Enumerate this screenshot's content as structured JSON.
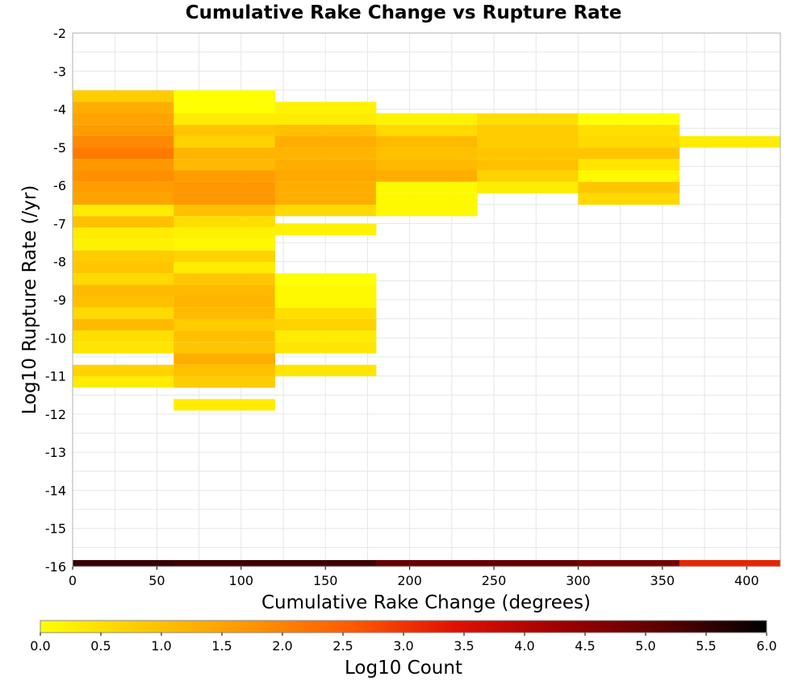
{
  "chart_data": {
    "type": "heatmap",
    "title": "Cumulative Rake Change vs Rupture Rate",
    "xlabel": "Cumulative Rake Change (degrees)",
    "ylabel": "Log10 Rupture Rate (/yr)",
    "xlim": [
      0,
      420
    ],
    "ylim": [
      -16,
      -2
    ],
    "x_ticks": [
      0,
      50,
      100,
      150,
      200,
      250,
      300,
      350,
      400
    ],
    "y_ticks": [
      -2,
      -3,
      -4,
      -5,
      -6,
      -7,
      -8,
      -9,
      -10,
      -11,
      -12,
      -13,
      -14,
      -15,
      -16
    ],
    "x_bin_width": 60,
    "y_bin_height": 0.29,
    "grid": true,
    "colorbar": {
      "label": "Log10 Count",
      "min": 0.0,
      "max": 6.0,
      "ticks": [
        "0.0",
        "0.5",
        "1.0",
        "1.5",
        "2.0",
        "2.5",
        "3.0",
        "3.5",
        "4.0",
        "4.5",
        "5.0",
        "5.5",
        "6.0"
      ],
      "stops": [
        "#ffff00",
        "#ffc800",
        "#ff9600",
        "#ff5a00",
        "#e01000",
        "#a00000",
        "#5a0000",
        "#000000"
      ]
    },
    "bins": [
      {
        "x": 30,
        "rows": [
          [
            -3.65,
            0.8
          ],
          [
            -3.95,
            1.3
          ],
          [
            -4.25,
            1.5
          ],
          [
            -4.55,
            1.6
          ],
          [
            -4.85,
            1.9
          ],
          [
            -5.15,
            2.1
          ],
          [
            -5.45,
            1.7
          ],
          [
            -5.75,
            1.8
          ],
          [
            -6.05,
            1.6
          ],
          [
            -6.35,
            1.5
          ],
          [
            -6.65,
            0.3
          ],
          [
            -6.95,
            1.0
          ],
          [
            -7.25,
            0.3
          ],
          [
            -7.55,
            0.2
          ],
          [
            -7.85,
            0.8
          ],
          [
            -8.15,
            0.9
          ],
          [
            -8.45,
            0.6
          ],
          [
            -8.75,
            1.1
          ],
          [
            -9.05,
            1.0
          ],
          [
            -9.35,
            0.6
          ],
          [
            -9.65,
            1.1
          ],
          [
            -9.95,
            0.5
          ],
          [
            -10.25,
            0.4
          ],
          [
            -10.85,
            0.7
          ],
          [
            -11.15,
            0.3
          ]
        ]
      },
      {
        "x": 90,
        "rows": [
          [
            -3.65,
            0.0
          ],
          [
            -3.95,
            0.0
          ],
          [
            -4.25,
            0.3
          ],
          [
            -4.55,
            0.9
          ],
          [
            -4.85,
            0.7
          ],
          [
            -5.15,
            1.2
          ],
          [
            -5.45,
            1.1
          ],
          [
            -5.75,
            1.6
          ],
          [
            -6.05,
            1.7
          ],
          [
            -6.35,
            1.7
          ],
          [
            -6.65,
            1.0
          ],
          [
            -6.95,
            0.5
          ],
          [
            -7.25,
            0.2
          ],
          [
            -7.55,
            0.1
          ],
          [
            -7.85,
            0.7
          ],
          [
            -8.15,
            0.3
          ],
          [
            -8.45,
            0.9
          ],
          [
            -8.75,
            1.1
          ],
          [
            -9.05,
            1.2
          ],
          [
            -9.35,
            1.1
          ],
          [
            -9.65,
            0.8
          ],
          [
            -9.95,
            1.0
          ],
          [
            -10.25,
            0.9
          ],
          [
            -10.55,
            1.3
          ],
          [
            -10.85,
            1.0
          ],
          [
            -11.15,
            0.8
          ],
          [
            -11.75,
            0.3
          ]
        ]
      },
      {
        "x": 150,
        "rows": [
          [
            -3.95,
            0.2
          ],
          [
            -4.25,
            0.3
          ],
          [
            -4.55,
            1.0
          ],
          [
            -4.85,
            1.3
          ],
          [
            -5.15,
            1.2
          ],
          [
            -5.45,
            1.3
          ],
          [
            -5.75,
            1.4
          ],
          [
            -6.05,
            1.3
          ],
          [
            -6.35,
            1.3
          ],
          [
            -6.65,
            0.6
          ],
          [
            -7.15,
            0.2
          ],
          [
            -8.45,
            0.0
          ],
          [
            -8.75,
            0.1
          ],
          [
            -9.05,
            0.1
          ],
          [
            -9.35,
            0.5
          ],
          [
            -9.65,
            0.7
          ],
          [
            -9.95,
            0.3
          ],
          [
            -10.25,
            0.4
          ],
          [
            -10.85,
            0.4
          ]
        ]
      },
      {
        "x": 210,
        "rows": [
          [
            -4.25,
            0.2
          ],
          [
            -4.55,
            0.6
          ],
          [
            -4.85,
            1.1
          ],
          [
            -5.15,
            1.0
          ],
          [
            -5.45,
            1.1
          ],
          [
            -5.75,
            1.3
          ],
          [
            -6.05,
            0.1
          ],
          [
            -6.35,
            0.1
          ],
          [
            -6.65,
            0.1
          ]
        ]
      },
      {
        "x": 270,
        "rows": [
          [
            -4.25,
            0.5
          ],
          [
            -4.55,
            0.8
          ],
          [
            -4.85,
            0.8
          ],
          [
            -5.15,
            0.9
          ],
          [
            -5.45,
            1.0
          ],
          [
            -5.75,
            0.7
          ],
          [
            -6.05,
            0.3
          ]
        ]
      },
      {
        "x": 330,
        "rows": [
          [
            -4.25,
            0.0
          ],
          [
            -4.55,
            0.5
          ],
          [
            -4.85,
            0.6
          ],
          [
            -5.15,
            0.9
          ],
          [
            -5.45,
            0.4
          ],
          [
            -5.75,
            0.1
          ],
          [
            -6.05,
            0.9
          ],
          [
            -6.35,
            0.6
          ]
        ]
      },
      {
        "x": 390,
        "rows": [
          [
            -4.85,
            0.3
          ]
        ]
      }
    ],
    "bottom_row": {
      "y": -15.93,
      "values": [
        5.5,
        5.4,
        5.4,
        5.0,
        5.0,
        4.8,
        3.2
      ]
    }
  }
}
